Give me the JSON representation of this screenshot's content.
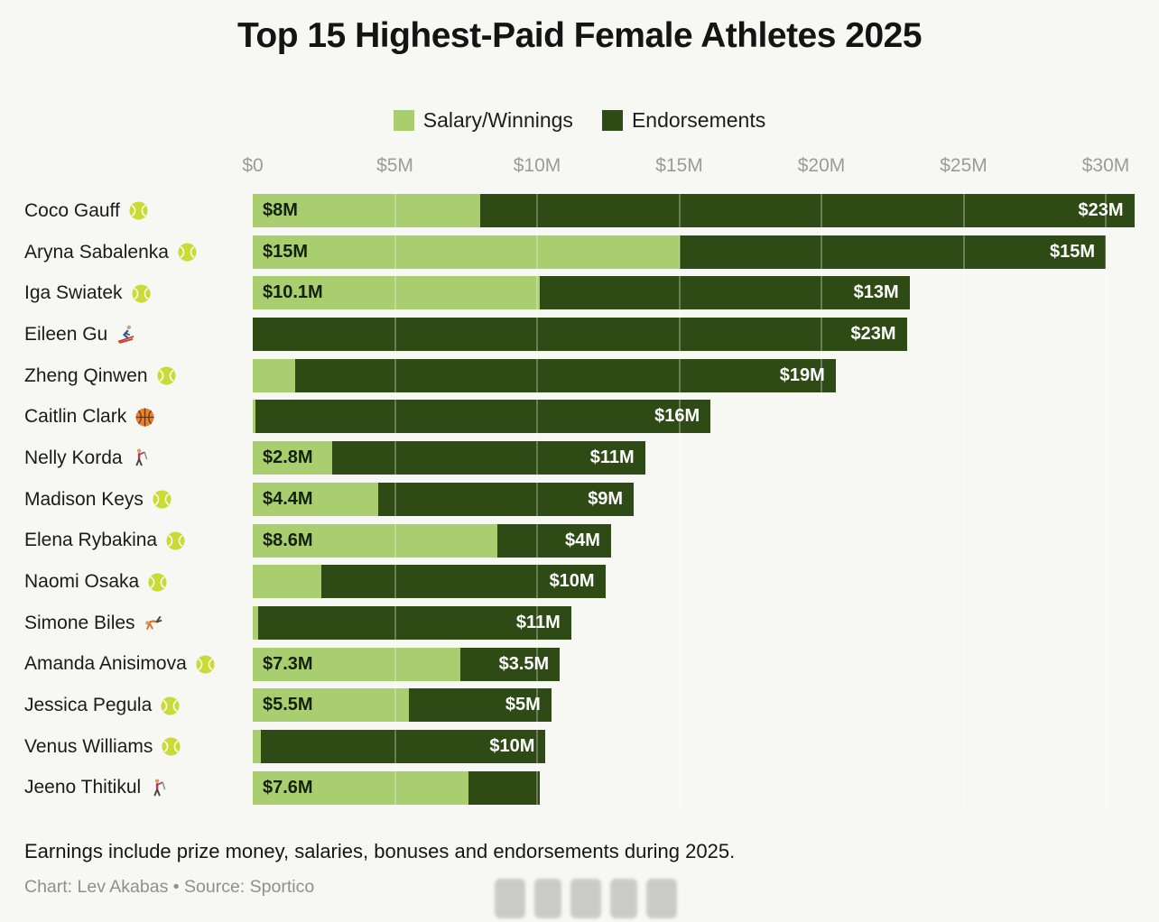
{
  "title": "Top 15 Highest-Paid Female Athletes 2025",
  "legend": {
    "items": [
      {
        "label": "Salary/Winnings",
        "color": "#a8ce6f"
      },
      {
        "label": "Endorsements",
        "color": "#2e4b16"
      }
    ]
  },
  "axis": {
    "ticks": [
      "$0",
      "$5M",
      "$10M",
      "$15M",
      "$20M",
      "$25M",
      "$30M"
    ],
    "max_millions": 30
  },
  "colors": {
    "salary": "#a8ce6f",
    "endorsement": "#2e4b16",
    "background": "#f7f7f4"
  },
  "footer": {
    "note": "Earnings include prize money, salaries, bonuses and endorsements during 2025.",
    "credit": "Chart: Lev Akabas • Source: Sportico"
  },
  "chart_data": {
    "type": "bar",
    "orientation": "horizontal",
    "stacked": true,
    "unit": "USD millions",
    "xlim": [
      0,
      30
    ],
    "series_names": [
      "Salary/Winnings",
      "Endorsements"
    ],
    "athletes": [
      {
        "name": "Coco Gauff",
        "icon": "tennis-ball-icon",
        "salary": 8,
        "endorsements": 23,
        "salary_label": "$8M",
        "endorsements_label": "$23M"
      },
      {
        "name": "Aryna Sabalenka",
        "icon": "tennis-ball-icon",
        "salary": 15,
        "endorsements": 15,
        "salary_label": "$15M",
        "endorsements_label": "$15M"
      },
      {
        "name": "Iga Swiatek",
        "icon": "tennis-ball-icon",
        "salary": 10.1,
        "endorsements": 13,
        "salary_label": "$10.1M",
        "endorsements_label": "$13M"
      },
      {
        "name": "Eileen Gu",
        "icon": "skier-icon",
        "salary": 0,
        "endorsements": 23,
        "salary_label": "",
        "endorsements_label": "$23M"
      },
      {
        "name": "Zheng Qinwen",
        "icon": "tennis-ball-icon",
        "salary": 1.5,
        "endorsements": 19,
        "salary_label": "",
        "endorsements_label": "$19M"
      },
      {
        "name": "Caitlin Clark",
        "icon": "basketball-icon",
        "salary": 0.1,
        "endorsements": 16,
        "salary_label": "",
        "endorsements_label": "$16M"
      },
      {
        "name": "Nelly Korda",
        "icon": "golfer-icon",
        "salary": 2.8,
        "endorsements": 11,
        "salary_label": "$2.8M",
        "endorsements_label": "$11M"
      },
      {
        "name": "Madison Keys",
        "icon": "tennis-ball-icon",
        "salary": 4.4,
        "endorsements": 9,
        "salary_label": "$4.4M",
        "endorsements_label": "$9M"
      },
      {
        "name": "Elena Rybakina",
        "icon": "tennis-ball-icon",
        "salary": 8.6,
        "endorsements": 4,
        "salary_label": "$8.6M",
        "endorsements_label": "$4M"
      },
      {
        "name": "Naomi Osaka",
        "icon": "tennis-ball-icon",
        "salary": 2.4,
        "endorsements": 10,
        "salary_label": "",
        "endorsements_label": "$10M"
      },
      {
        "name": "Simone Biles",
        "icon": "gymnast-icon",
        "salary": 0.2,
        "endorsements": 11,
        "salary_label": "",
        "endorsements_label": "$11M"
      },
      {
        "name": "Amanda Anisimova",
        "icon": "tennis-ball-icon",
        "salary": 7.3,
        "endorsements": 3.5,
        "salary_label": "$7.3M",
        "endorsements_label": "$3.5M"
      },
      {
        "name": "Jessica Pegula",
        "icon": "tennis-ball-icon",
        "salary": 5.5,
        "endorsements": 5,
        "salary_label": "$5.5M",
        "endorsements_label": "$5M"
      },
      {
        "name": "Venus Williams",
        "icon": "tennis-ball-icon",
        "salary": 0.3,
        "endorsements": 10,
        "salary_label": "",
        "endorsements_label": "$10M"
      },
      {
        "name": "Jeeno Thitikul",
        "icon": "golfer-icon",
        "salary": 7.6,
        "endorsements": 2.5,
        "salary_label": "$7.6M",
        "endorsements_label": ""
      }
    ]
  }
}
